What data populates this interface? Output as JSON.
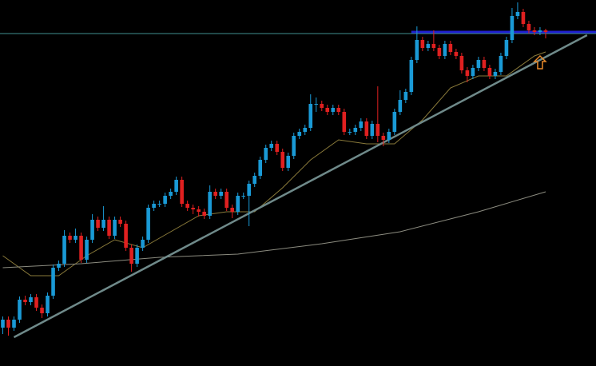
{
  "chart_data": {
    "type": "candlestick",
    "background": "#000000",
    "up_color": "#1a9ad6",
    "down_color": "#e02020",
    "xlim": [
      -0.5,
      106
    ],
    "ylim": [
      0,
      458
    ],
    "open": [
      48,
      58,
      48,
      58,
      83,
      80,
      86,
      73,
      66,
      88,
      123,
      128,
      163,
      158,
      163,
      133,
      158,
      183,
      173,
      183,
      163,
      183,
      178,
      148,
      128,
      148,
      158,
      198,
      203,
      203,
      213,
      218,
      233,
      203,
      198,
      196,
      193,
      188,
      218,
      213,
      218,
      198,
      193,
      213,
      213,
      228,
      238,
      258,
      273,
      278,
      268,
      248,
      263,
      288,
      293,
      298,
      328,
      328,
      323,
      318,
      323,
      318,
      293,
      293,
      298,
      306,
      288,
      303,
      288,
      283,
      293,
      318,
      333,
      343,
      383,
      408,
      398,
      403,
      398,
      388,
      403,
      393,
      388,
      370,
      363,
      373,
      383,
      373,
      363,
      368,
      388,
      408,
      438,
      443,
      428,
      420,
      418,
      420
    ],
    "high": [
      62,
      62,
      62,
      87,
      88,
      90,
      90,
      77,
      92,
      127,
      132,
      170,
      167,
      172,
      167,
      162,
      190,
      187,
      200,
      187,
      187,
      187,
      182,
      152,
      152,
      162,
      202,
      207,
      207,
      217,
      222,
      237,
      237,
      207,
      202,
      200,
      197,
      226,
      222,
      222,
      222,
      202,
      217,
      217,
      232,
      242,
      262,
      277,
      282,
      282,
      272,
      267,
      292,
      297,
      302,
      340,
      336,
      332,
      327,
      327,
      327,
      322,
      297,
      302,
      310,
      310,
      307,
      350,
      292,
      297,
      322,
      345,
      347,
      387,
      425,
      412,
      407,
      420,
      402,
      407,
      407,
      397,
      392,
      374,
      377,
      387,
      387,
      377,
      372,
      392,
      412,
      448,
      455,
      447,
      432,
      424,
      424,
      422
    ],
    "low": [
      40,
      38,
      44,
      54,
      76,
      76,
      69,
      60,
      62,
      84,
      119,
      124,
      154,
      154,
      129,
      129,
      154,
      169,
      169,
      159,
      159,
      174,
      144,
      118,
      124,
      144,
      154,
      194,
      199,
      199,
      209,
      214,
      199,
      194,
      190,
      187,
      184,
      184,
      209,
      209,
      194,
      185,
      189,
      209,
      175,
      224,
      234,
      254,
      269,
      264,
      244,
      244,
      259,
      284,
      289,
      294,
      318,
      319,
      314,
      314,
      314,
      289,
      289,
      289,
      294,
      284,
      284,
      280,
      275,
      279,
      289,
      314,
      329,
      339,
      379,
      394,
      394,
      394,
      384,
      384,
      389,
      384,
      366,
      355,
      359,
      369,
      369,
      359,
      359,
      364,
      384,
      404,
      434,
      424,
      416,
      414,
      414,
      410
    ],
    "close": [
      58,
      48,
      58,
      83,
      80,
      86,
      73,
      66,
      88,
      123,
      128,
      163,
      158,
      163,
      133,
      158,
      183,
      173,
      183,
      163,
      183,
      178,
      148,
      128,
      148,
      158,
      198,
      203,
      203,
      213,
      218,
      233,
      203,
      198,
      196,
      193,
      188,
      218,
      213,
      218,
      198,
      193,
      213,
      213,
      228,
      238,
      258,
      273,
      278,
      268,
      248,
      263,
      288,
      293,
      298,
      328,
      328,
      323,
      318,
      323,
      318,
      293,
      293,
      298,
      306,
      288,
      303,
      288,
      283,
      293,
      318,
      333,
      343,
      383,
      408,
      398,
      403,
      398,
      388,
      403,
      393,
      388,
      370,
      363,
      373,
      383,
      373,
      363,
      368,
      388,
      408,
      438,
      443,
      428,
      420,
      418,
      420,
      418
    ],
    "lines": [
      {
        "color": "#8a7a3a",
        "width": 1,
        "x": [
          0,
          5,
          10,
          15,
          20,
          25,
          30,
          35,
          40,
          45,
          50,
          55,
          60,
          65,
          70,
          75,
          80,
          85,
          90,
          95,
          97
        ],
        "values": [
          138,
          113,
          113,
          138,
          158,
          148,
          168,
          188,
          193,
          193,
          223,
          258,
          283,
          278,
          278,
          308,
          348,
          363,
          363,
          388,
          393
        ]
      },
      {
        "color": "#8c8c80",
        "width": 1,
        "x": [
          0,
          14,
          28,
          42,
          57,
          71,
          85,
          97
        ],
        "values": [
          123,
          128,
          136,
          140,
          153,
          168,
          193,
          218
        ]
      },
      {
        "color": "#6f8a8a",
        "width": 2.5,
        "x": [
          2,
          104.4
        ],
        "values": [
          36,
          414
        ]
      },
      {
        "color": "#3f8f8f",
        "width": 1,
        "x": [
          -0.5,
          106
        ],
        "values": [
          416,
          416
        ]
      },
      {
        "color": "#2020d0",
        "width": 3,
        "x": [
          73,
          106
        ],
        "values": [
          418,
          418
        ]
      }
    ],
    "markers": [
      {
        "x": 96,
        "value": 380,
        "color": "#e8892a"
      }
    ]
  }
}
